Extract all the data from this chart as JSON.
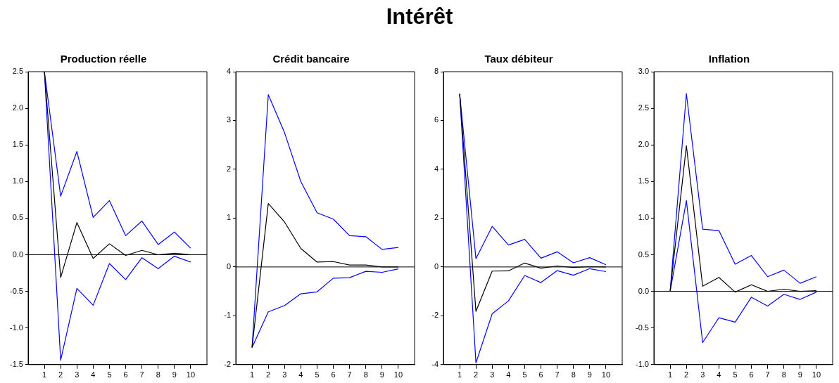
{
  "chart_data": [
    {
      "type": "other",
      "title": "Intérêt"
    },
    {
      "type": "line",
      "title": "Production réelle",
      "x": [
        1,
        2,
        3,
        4,
        5,
        6,
        7,
        8,
        9,
        10
      ],
      "xlim": [
        0,
        11
      ],
      "xticks": [
        1,
        2,
        3,
        4,
        5,
        6,
        7,
        8,
        9,
        10
      ],
      "ylim": [
        -1.5,
        2.5
      ],
      "yticks": [
        -1.5,
        {
          "value": -1,
          "label": "-1.0"
        },
        -0.5,
        {
          "value": 0,
          "label": "0.0"
        },
        0.5,
        {
          "value": 1,
          "label": "1.0"
        },
        1.5,
        {
          "value": 2,
          "label": "2.0"
        },
        2.5
      ],
      "grid": false,
      "legend": false,
      "ref_lines": [
        {
          "axis": "y",
          "value": 0,
          "color": "#000000"
        }
      ],
      "series": [
        {
          "color": "#000000",
          "values": [
            2.5,
            -0.31,
            0.44,
            -0.05,
            0.15,
            -0.01,
            0.06,
            0.0,
            0.02,
            0.0
          ]
        },
        {
          "color": "#0000ff",
          "values": [
            2.5,
            0.8,
            1.41,
            0.51,
            0.74,
            0.26,
            0.46,
            0.14,
            0.31,
            0.09
          ]
        },
        {
          "color": "#0000ff",
          "values": [
            2.5,
            -1.44,
            -0.46,
            -0.69,
            -0.12,
            -0.34,
            -0.04,
            -0.19,
            -0.02,
            -0.1
          ]
        }
      ]
    },
    {
      "type": "line",
      "title": "Crédit bancaire",
      "x": [
        1,
        2,
        3,
        4,
        5,
        6,
        7,
        8,
        9,
        10
      ],
      "xlim": [
        0,
        11
      ],
      "xticks": [
        1,
        2,
        3,
        4,
        5,
        6,
        7,
        8,
        9,
        10
      ],
      "ylim": [
        -2,
        4
      ],
      "yticks": [
        -2,
        -1,
        0,
        1,
        2,
        3,
        4
      ],
      "grid": false,
      "legend": false,
      "ref_lines": [
        {
          "axis": "y",
          "value": 0,
          "color": "#000000"
        }
      ],
      "series": [
        {
          "color": "#000000",
          "values": [
            -1.65,
            1.3,
            0.92,
            0.38,
            0.1,
            0.11,
            0.04,
            0.04,
            0.0,
            0.0
          ]
        },
        {
          "color": "#0000ff",
          "values": [
            -1.65,
            3.53,
            2.75,
            1.75,
            1.11,
            0.98,
            0.64,
            0.62,
            0.36,
            0.4
          ]
        },
        {
          "color": "#0000ff",
          "values": [
            -1.65,
            -0.92,
            -0.79,
            -0.55,
            -0.51,
            -0.23,
            -0.22,
            -0.09,
            -0.11,
            -0.04
          ]
        }
      ]
    },
    {
      "type": "line",
      "title": "Taux débiteur",
      "x": [
        1,
        2,
        3,
        4,
        5,
        6,
        7,
        8,
        9,
        10
      ],
      "xlim": [
        0,
        11
      ],
      "xticks": [
        1,
        2,
        3,
        4,
        5,
        6,
        7,
        8,
        9,
        10
      ],
      "ylim": [
        -4,
        8
      ],
      "yticks": [
        -4,
        -2,
        0,
        2,
        4,
        6,
        8
      ],
      "grid": false,
      "legend": false,
      "ref_lines": [
        {
          "axis": "y",
          "value": 0,
          "color": "#000000"
        }
      ],
      "series": [
        {
          "color": "#000000",
          "values": [
            7.09,
            -1.82,
            -0.17,
            -0.16,
            0.16,
            -0.05,
            0.04,
            -0.02,
            0.01,
            0.0
          ]
        },
        {
          "color": "#0000ff",
          "values": [
            7.09,
            0.34,
            1.66,
            0.9,
            1.13,
            0.36,
            0.62,
            0.17,
            0.38,
            0.09
          ]
        },
        {
          "color": "#0000ff",
          "values": [
            7.09,
            -3.93,
            -1.92,
            -1.39,
            -0.35,
            -0.64,
            -0.15,
            -0.34,
            -0.07,
            -0.19
          ]
        }
      ]
    },
    {
      "type": "line",
      "title": "Inflation",
      "x": [
        1,
        2,
        3,
        4,
        5,
        6,
        7,
        8,
        9,
        10
      ],
      "xlim": [
        0,
        11
      ],
      "xticks": [
        1,
        2,
        3,
        4,
        5,
        6,
        7,
        8,
        9,
        10
      ],
      "ylim": [
        -1,
        3
      ],
      "yticks": [
        {
          "value": -1,
          "label": "-1.0"
        },
        -0.5,
        {
          "value": 0,
          "label": "0.0"
        },
        0.5,
        {
          "value": 1,
          "label": "1.0"
        },
        1.5,
        {
          "value": 2,
          "label": "2.0"
        },
        2.5,
        {
          "value": 3,
          "label": "3.0"
        }
      ],
      "grid": false,
      "legend": false,
      "ref_lines": [
        {
          "axis": "y",
          "value": 0,
          "color": "#000000"
        }
      ],
      "series": [
        {
          "color": "#000000",
          "values": [
            0,
            1.99,
            0.07,
            0.19,
            -0.01,
            0.09,
            0.0,
            0.03,
            0.0,
            0.01
          ]
        },
        {
          "color": "#0000ff",
          "values": [
            0,
            2.7,
            0.85,
            0.83,
            0.37,
            0.49,
            0.2,
            0.29,
            0.11,
            0.2
          ]
        },
        {
          "color": "#0000ff",
          "values": [
            0,
            1.24,
            -0.7,
            -0.36,
            -0.42,
            -0.08,
            -0.2,
            -0.04,
            -0.11,
            -0.01
          ]
        }
      ]
    }
  ]
}
